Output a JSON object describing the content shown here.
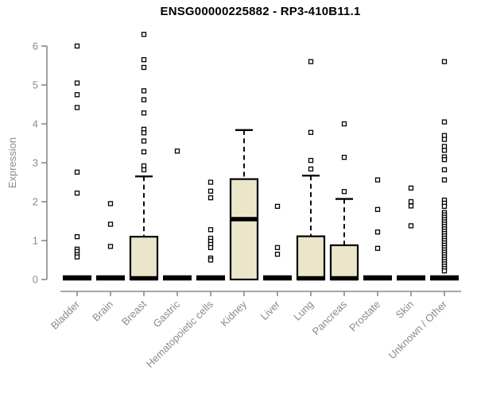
{
  "title": "ENSG00000225882 - RP3-410B11.1",
  "chart_data": {
    "type": "boxplot",
    "title": "ENSG00000225882 - RP3-410B11.1",
    "ylabel": "Expression",
    "xlabel": "",
    "ylim": [
      0,
      6.5
    ],
    "yticks": [
      0,
      1,
      2,
      3,
      4,
      5,
      6
    ],
    "grid": false,
    "legend": "none",
    "categories": [
      "Bladder",
      "Brain",
      "Breast",
      "Gastric",
      "Hematopoietic cells",
      "Kidney",
      "Liver",
      "Lung",
      "Pancreas",
      "Prostate",
      "Skin",
      "Unknown / Other"
    ],
    "groups": [
      {
        "label": "Bladder",
        "whisker_low": 0,
        "q1": 0,
        "median": 0,
        "q3": 0,
        "whisker_high": 0,
        "outliers": [
          6.0,
          5.05,
          4.75,
          4.42,
          2.76,
          2.22,
          1.1,
          0.78,
          0.72,
          0.64,
          0.58
        ]
      },
      {
        "label": "Brain",
        "whisker_low": 0,
        "q1": 0,
        "median": 0,
        "q3": 0,
        "whisker_high": 0,
        "outliers": [
          1.95,
          1.42,
          0.85
        ]
      },
      {
        "label": "Breast",
        "whisker_low": 0,
        "q1": 0,
        "median": 0,
        "q3": 1.1,
        "whisker_high": 2.65,
        "outliers": [
          6.3,
          5.65,
          5.45,
          4.85,
          4.62,
          4.28,
          3.86,
          3.77,
          3.56,
          3.28,
          2.92,
          2.82
        ]
      },
      {
        "label": "Gastric",
        "whisker_low": 0,
        "q1": 0,
        "median": 0,
        "q3": 0,
        "whisker_high": 0,
        "outliers": [
          3.3
        ]
      },
      {
        "label": "Hematopoietic cells",
        "whisker_low": 0,
        "q1": 0,
        "median": 0,
        "q3": 0,
        "whisker_high": 0,
        "outliers": [
          2.5,
          2.27,
          2.1,
          1.28,
          1.06,
          0.98,
          0.9,
          0.82,
          0.55,
          0.5
        ]
      },
      {
        "label": "Kidney",
        "whisker_low": 0,
        "q1": 0,
        "median": 1.52,
        "q3": 2.58,
        "whisker_high": 3.84,
        "outliers": []
      },
      {
        "label": "Liver",
        "whisker_low": 0,
        "q1": 0,
        "median": 0,
        "q3": 0,
        "whisker_high": 0,
        "outliers": [
          1.88,
          0.82,
          0.65
        ]
      },
      {
        "label": "Lung",
        "whisker_low": 0,
        "q1": 0,
        "median": 0,
        "q3": 1.11,
        "whisker_high": 2.67,
        "outliers": [
          5.6,
          3.78,
          3.06,
          2.84
        ]
      },
      {
        "label": "Pancreas",
        "whisker_low": 0,
        "q1": 0,
        "median": 0,
        "q3": 0.88,
        "whisker_high": 2.07,
        "outliers": [
          4.0,
          3.14,
          2.26
        ]
      },
      {
        "label": "Prostate",
        "whisker_low": 0,
        "q1": 0,
        "median": 0,
        "q3": 0,
        "whisker_high": 0,
        "outliers": [
          2.56,
          1.8,
          1.22,
          0.8
        ]
      },
      {
        "label": "Skin",
        "whisker_low": 0,
        "q1": 0,
        "median": 0,
        "q3": 0,
        "whisker_high": 0,
        "outliers": [
          2.35,
          2.0,
          1.89,
          1.38
        ]
      },
      {
        "label": "Unknown / Other",
        "whisker_low": 0,
        "q1": 0,
        "median": 0,
        "q3": 0,
        "whisker_high": 0,
        "outliers": [
          5.6,
          4.05,
          3.7,
          3.6,
          3.42,
          3.32,
          3.15,
          3.08,
          2.82,
          2.56,
          2.04,
          1.96,
          1.88,
          1.72,
          1.66,
          1.6,
          1.54,
          1.48,
          1.42,
          1.36,
          1.3,
          1.24,
          1.18,
          1.12,
          1.06,
          1.0,
          0.94,
          0.88,
          0.82,
          0.76,
          0.7,
          0.64,
          0.58,
          0.52,
          0.46,
          0.4,
          0.34,
          0.28,
          0.22
        ]
      }
    ],
    "colors": {
      "box_fill": "#EBE5C9",
      "box_stroke": "#000000",
      "median": "#000000",
      "whisker": "#000000",
      "outlier_stroke": "#000000",
      "outlier_fill": "#ffffff",
      "axis": "#8a8a8a",
      "tick_label": "#8a8a8a",
      "title": "#000000",
      "background": "#ffffff"
    }
  }
}
